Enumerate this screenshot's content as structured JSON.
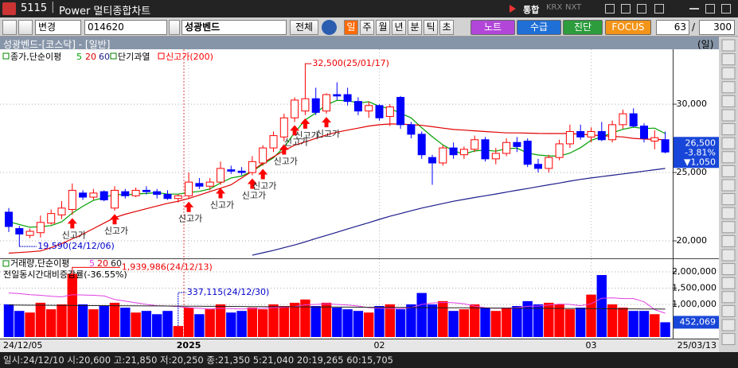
{
  "window": {
    "code": "5115",
    "title": "Power 멀티종합차트",
    "badges": [
      "통합",
      "KRX",
      "NXT"
    ]
  },
  "toolbar": {
    "mode": "변경",
    "stock_code": "014620",
    "stock_name": "성광벤드",
    "all_button": "전체",
    "periods": [
      "일",
      "주",
      "월",
      "년",
      "분",
      "틱",
      "초"
    ],
    "buttons": [
      {
        "label": "노트",
        "color": "#b246d8"
      },
      {
        "label": "수급",
        "color": "#1f6fd6"
      },
      {
        "label": "진단",
        "color": "#2c9c3c"
      },
      {
        "label": "FOCUS",
        "color": "#f29418"
      }
    ],
    "count": "63",
    "separator": "/",
    "total": "300"
  },
  "header": {
    "title": "성광벤드-[코스닥] - [일반]",
    "period": "(일)"
  },
  "chart_data": [
    {
      "type": "candlestick",
      "legend_prefix": "종가,단순이평",
      "indicators": [
        {
          "name": "단기과열",
          "color": "#008000"
        },
        {
          "name": "신고가(200)",
          "color": "#ff0000"
        }
      ],
      "up_color": "#ff0000",
      "down_color": "#0000ff",
      "categories": [
        "24/12/05",
        null,
        null,
        null,
        null,
        null,
        null,
        null,
        null,
        null,
        null,
        null,
        null,
        null,
        null,
        null,
        null,
        "2025",
        null,
        null,
        null,
        null,
        null,
        null,
        null,
        null,
        null,
        null,
        null,
        null,
        null,
        null,
        null,
        null,
        null,
        "02",
        null,
        null,
        null,
        null,
        null,
        null,
        null,
        null,
        null,
        null,
        null,
        null,
        null,
        null,
        null,
        null,
        null,
        null,
        null,
        "03",
        null,
        null,
        null,
        null,
        null,
        null,
        "25/03/13"
      ],
      "candles": {
        "open": [
          22100,
          20900,
          20400,
          20600,
          21300,
          21900,
          22300,
          23500,
          23200,
          23600,
          22400,
          23600,
          23300,
          23700,
          23600,
          23400,
          23100,
          23300,
          24200,
          24000,
          24300,
          25200,
          25100,
          25000,
          25700,
          26800,
          27600,
          29000,
          29500,
          30400,
          29500,
          30700,
          30700,
          30200,
          29500,
          29900,
          29100,
          30500,
          28500,
          27800,
          26100,
          25700,
          26800,
          26300,
          26700,
          27400,
          26000,
          26400,
          27200,
          27300,
          25600,
          25300,
          26100,
          27100,
          28000,
          27600,
          28000,
          27400,
          28500,
          29300,
          28400,
          27300,
          27400
        ],
        "high": [
          22400,
          21100,
          20900,
          21850,
          22300,
          22900,
          24200,
          23700,
          23800,
          23700,
          24000,
          23800,
          23900,
          24000,
          23800,
          23700,
          23400,
          25000,
          24600,
          24600,
          25800,
          25500,
          25400,
          26200,
          27000,
          28000,
          29300,
          30500,
          32500,
          31200,
          30800,
          31600,
          31200,
          30500,
          30200,
          30000,
          30000,
          30600,
          28700,
          28000,
          26300,
          27000,
          27200,
          26900,
          27700,
          27600,
          26800,
          27500,
          27600,
          27500,
          26000,
          26300,
          27400,
          28500,
          28500,
          28300,
          28700,
          28800,
          29600,
          29700,
          28600,
          28100,
          28000
        ],
        "low": [
          20650,
          19590,
          20200,
          20250,
          21200,
          21600,
          21900,
          23000,
          23000,
          22900,
          22200,
          23100,
          23200,
          23400,
          23100,
          23000,
          22800,
          23100,
          23800,
          23700,
          24100,
          24900,
          24800,
          24800,
          25500,
          26500,
          27300,
          28700,
          29200,
          29200,
          29300,
          30300,
          29900,
          29200,
          29000,
          28800,
          28400,
          28200,
          27500,
          26000,
          24100,
          25500,
          26000,
          26000,
          26500,
          25800,
          25600,
          26200,
          26500,
          25400,
          25000,
          25000,
          25900,
          26800,
          27400,
          27200,
          27300,
          27200,
          28200,
          28300,
          27200,
          26700,
          26400
        ],
        "close": [
          21050,
          20500,
          20700,
          21350,
          22000,
          22400,
          23700,
          23200,
          23500,
          23000,
          23700,
          23300,
          23700,
          23600,
          23400,
          23100,
          23300,
          24300,
          24000,
          24300,
          25300,
          25100,
          25000,
          25800,
          26800,
          27700,
          29000,
          30300,
          30400,
          29400,
          30700,
          30600,
          30200,
          29500,
          29900,
          29000,
          29800,
          28500,
          27800,
          26300,
          25700,
          26800,
          26300,
          26700,
          27400,
          26000,
          26400,
          27200,
          26900,
          25600,
          25300,
          26100,
          27100,
          28000,
          27600,
          28000,
          27400,
          28500,
          29300,
          28400,
          27500,
          27550,
          26500
        ]
      },
      "series": [
        {
          "name": "5",
          "color": "#00a000",
          "values": [
            21400,
            21200,
            21000,
            21040,
            21120,
            21390,
            22030,
            22530,
            22960,
            23160,
            23420,
            23340,
            23440,
            23460,
            23540,
            23420,
            23420,
            23540,
            23620,
            23800,
            24240,
            24600,
            24740,
            25100,
            25600,
            26080,
            26860,
            27920,
            28840,
            29360,
            29960,
            30280,
            30260,
            30080,
            30180,
            29840,
            29680,
            29340,
            29000,
            28280,
            27620,
            27020,
            26580,
            26360,
            26580,
            26640,
            26560,
            26740,
            26780,
            26420,
            26280,
            26220,
            26200,
            26420,
            26820,
            27360,
            27620,
            27900,
            28160,
            28320,
            28220,
            28250,
            27850
          ]
        },
        {
          "name": "20",
          "color": "#e00000",
          "values": [
            19100,
            19150,
            19200,
            19265,
            19500,
            19800,
            20150,
            20500,
            20900,
            21300,
            21700,
            21950,
            22150,
            22350,
            22550,
            22750,
            22900,
            23100,
            23350,
            23600,
            23850,
            24100,
            24600,
            25100,
            25700,
            26150,
            26600,
            27000,
            27250,
            27500,
            27750,
            27950,
            28100,
            28250,
            28400,
            28500,
            28550,
            28550,
            28500,
            28450,
            28350,
            28250,
            28150,
            28100,
            28050,
            28000,
            27950,
            27900,
            27900,
            27880,
            27860,
            27850,
            27850,
            27850,
            27800,
            27750,
            27700,
            27650,
            27600,
            27500,
            27450,
            27420,
            27400
          ]
        },
        {
          "name": "60",
          "color": "#1c1c8c",
          "values": [
            null,
            null,
            null,
            null,
            null,
            null,
            null,
            null,
            null,
            null,
            null,
            null,
            null,
            null,
            null,
            null,
            null,
            null,
            null,
            null,
            null,
            null,
            null,
            18950,
            19130,
            19300,
            19500,
            19700,
            19930,
            20170,
            20400,
            20630,
            20870,
            21100,
            21330,
            21570,
            21800,
            22000,
            22200,
            22400,
            22570,
            22730,
            22900,
            23030,
            23170,
            23300,
            23430,
            23570,
            23700,
            23830,
            23970,
            24100,
            24230,
            24370,
            24500,
            24600,
            24700,
            24800,
            24900,
            25000,
            25100,
            25200,
            25300
          ]
        }
      ],
      "ylim": [
        18840,
        33900
      ],
      "yticks": [
        {
          "value": 20000,
          "label": "20,000"
        },
        {
          "value": 25000,
          "label": "25,000"
        },
        {
          "value": 30000,
          "label": "30,000"
        }
      ],
      "grid": true,
      "high_label": "32,500(25/01/17)",
      "low_label": "19,590(24/12/06)",
      "new_high_labels": [
        null,
        null,
        null,
        null,
        null,
        null,
        "신고가",
        null,
        null,
        null,
        "신고가",
        null,
        null,
        null,
        null,
        null,
        null,
        "신고가",
        null,
        null,
        "신고가",
        null,
        null,
        "신고가",
        "신고가",
        null,
        "신고가",
        "신고가",
        "신고가",
        null,
        "신고가",
        null,
        null,
        null,
        null,
        null,
        null,
        null,
        null,
        null,
        null,
        null,
        null,
        null,
        null,
        null,
        null,
        null,
        null,
        null,
        null,
        null,
        null,
        null,
        null,
        null,
        null,
        null,
        null,
        null,
        null,
        null,
        null
      ],
      "current": {
        "label": "26,500",
        "change_pct": "-3.81%",
        "change": "▼1,050"
      }
    },
    {
      "type": "bar",
      "legend_prefix": "거래량,단순이평",
      "ma_legend": [
        {
          "name": "5",
          "color": "#e040e0"
        },
        {
          "name": "20",
          "color": "#e00000"
        },
        {
          "name": "60",
          "color": "#202020"
        }
      ],
      "ratio_label": "전일동시간대비증감률(-36.55%)",
      "values": [
        1000000,
        800000,
        750000,
        1050000,
        850000,
        1000000,
        1939986,
        1000000,
        850000,
        950000,
        1050000,
        900000,
        750000,
        800000,
        700000,
        800000,
        337115,
        900000,
        700000,
        850000,
        1000000,
        750000,
        800000,
        900000,
        850000,
        1000000,
        950000,
        1050000,
        1150000,
        950000,
        1050000,
        900000,
        850000,
        800000,
        750000,
        950000,
        1000000,
        850000,
        1000000,
        1350000,
        1000000,
        1100000,
        800000,
        850000,
        1000000,
        900000,
        800000,
        900000,
        950000,
        1100000,
        1000000,
        1050000,
        1000000,
        850000,
        900000,
        1300000,
        1900000,
        1000000,
        900000,
        800000,
        800000,
        700000,
        452069
      ],
      "ma5": [
        1350000,
        1330000,
        1300000,
        1280000,
        1250000,
        1230000,
        1300000,
        1290000,
        1280000,
        1260000,
        1150000,
        1100000,
        1050000,
        1000000,
        960000,
        950000,
        930000,
        900000,
        880000,
        860000,
        880000,
        870000,
        860000,
        870000,
        880000,
        900000,
        910000,
        930000,
        990000,
        1000000,
        1020000,
        1000000,
        980000,
        950000,
        900000,
        880000,
        870000,
        870000,
        900000,
        1000000,
        1040000,
        1060000,
        1050000,
        1020000,
        950000,
        900000,
        880000,
        890000,
        900000,
        940000,
        950000,
        980000,
        1010000,
        1000000,
        960000,
        1020000,
        1190000,
        1200000,
        1180000,
        1180000,
        1080000,
        840000,
        730000
      ],
      "ma60": [
        980000,
        978000,
        976000,
        974000,
        972000,
        970000,
        968000,
        966000,
        964000,
        962000,
        960000,
        958000,
        956000,
        954000,
        952000,
        950000,
        948000,
        946000,
        944000,
        942000,
        940000,
        938000,
        936000,
        934000,
        932000,
        930000,
        928000,
        926000,
        924000,
        922000,
        920000,
        918000,
        916000,
        914000,
        912000,
        910000,
        908000,
        906000,
        904000,
        902000,
        900000,
        898000,
        896000,
        894000,
        892000,
        890000,
        888000,
        886000,
        884000,
        882000,
        880000,
        878000,
        876000,
        874000,
        872000,
        870000,
        868000,
        866000,
        864000,
        862000,
        860000,
        858000,
        856000
      ],
      "max_label": "1,939,986(24/12/13)",
      "min_label": "337,115(24/12/30)",
      "last_label": "452,069",
      "ylim": [
        0,
        2340000
      ],
      "yticks": [
        {
          "value": 1000000,
          "label": "1,000,000"
        },
        {
          "value": 1500000,
          "label": "1,500,000"
        },
        {
          "value": 2000000,
          "label": "2,000,000"
        }
      ],
      "grid": true
    }
  ],
  "status_bar": "일시:24/12/10 시:20,600 고:21,850 저:20,250 종:21,350 5:21,040 20:19,265 60:15,705"
}
